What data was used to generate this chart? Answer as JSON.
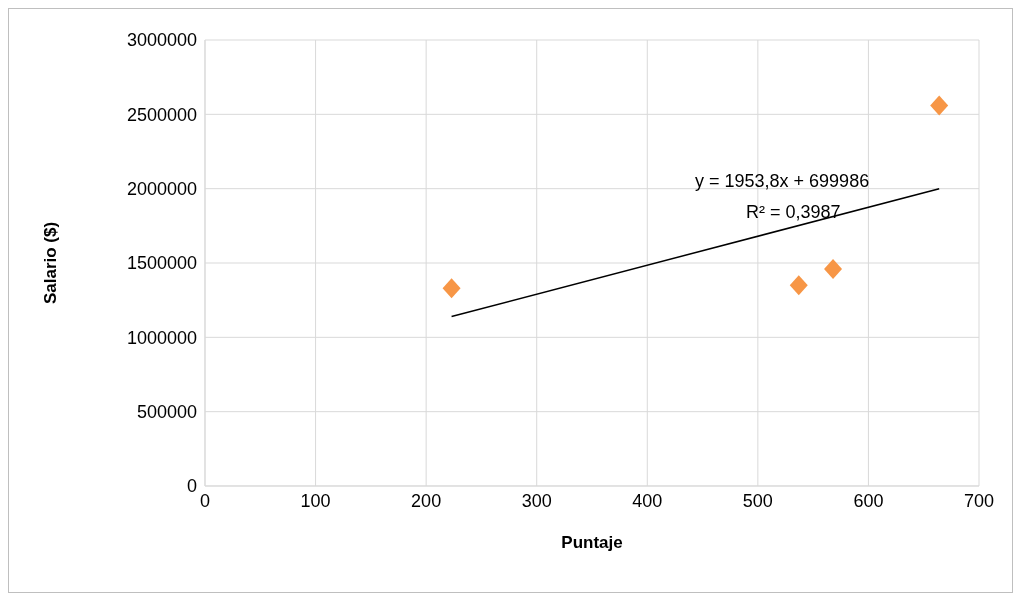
{
  "chart_data": {
    "type": "scatter",
    "xlabel": "Puntaje",
    "ylabel": "Salario ($)",
    "series": [
      {
        "color": "#f79646",
        "marker": "diamond",
        "x": [
          223,
          537,
          568,
          664
        ],
        "values": [
          1330000,
          1350000,
          1460000,
          2560000
        ]
      },
      {
        "type": "line",
        "color": "#000000",
        "marker": "none",
        "x": [
          223,
          664
        ],
        "values": [
          1140000,
          2000000
        ]
      }
    ],
    "annotations": [
      "y = 1953,8x + 699986",
      "R² = 0,3987"
    ],
    "xlim": [
      0,
      700
    ],
    "xticks": [
      0,
      100,
      200,
      300,
      400,
      500,
      600,
      700
    ],
    "ylim": [
      0,
      3000000
    ],
    "yticks": [
      0,
      500000,
      1000000,
      1500000,
      2000000,
      2500000,
      3000000
    ],
    "grid": true,
    "legend": false
  }
}
